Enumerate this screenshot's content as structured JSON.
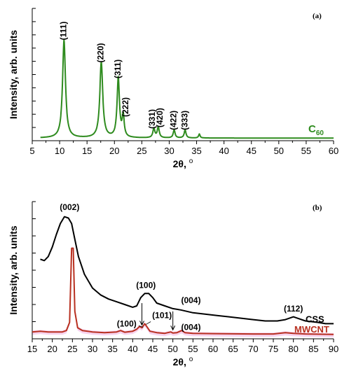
{
  "chart_data": [
    {
      "type": "line",
      "panel_label": "(a)",
      "xlabel": "2θ, ",
      "xlabel_unit": "o",
      "ylabel": "Intensity, arb. units",
      "xlim": [
        5,
        60
      ],
      "ylim": [
        0,
        100
      ],
      "x_ticks": [
        "5",
        "10",
        "15",
        "20",
        "25",
        "30",
        "35",
        "40",
        "45",
        "50",
        "55",
        "60"
      ],
      "y_tick_count": 11,
      "series": [
        {
          "name": "C",
          "name_sub": "60",
          "color": "#2e8b1e",
          "peaks": [
            {
              "x": 10.8,
              "y": 74,
              "w": 0.32
            },
            {
              "x": 17.6,
              "y": 57,
              "w": 0.32
            },
            {
              "x": 20.7,
              "y": 45,
              "w": 0.26
            },
            {
              "x": 21.6,
              "y": 16,
              "w": 0.22
            },
            {
              "x": 27.2,
              "y": 7,
              "w": 0.22
            },
            {
              "x": 28.0,
              "y": 8,
              "w": 0.22
            },
            {
              "x": 30.9,
              "y": 6,
              "w": 0.2
            },
            {
              "x": 32.9,
              "y": 6,
              "w": 0.2
            },
            {
              "x": 35.5,
              "y": 3,
              "w": 0.16
            }
          ],
          "baseline": 2,
          "x_start": 6.5
        }
      ],
      "annotations": [
        {
          "text": "(111)",
          "x": 10.8,
          "y": 76,
          "rotate": -90
        },
        {
          "text": "(220)",
          "x": 17.6,
          "y": 59,
          "rotate": -90
        },
        {
          "text": "(311)",
          "x": 20.7,
          "y": 47,
          "rotate": -90
        },
        {
          "text": "(222)",
          "x": 22.1,
          "y": 18,
          "rotate": -90
        },
        {
          "text": "(331)",
          "x": 27.0,
          "y": 9,
          "rotate": -90
        },
        {
          "text": "(420)",
          "x": 28.4,
          "y": 10,
          "rotate": -90
        },
        {
          "text": "(422)",
          "x": 30.9,
          "y": 8,
          "rotate": -90
        },
        {
          "text": "(333)",
          "x": 32.9,
          "y": 8,
          "rotate": -90
        }
      ]
    },
    {
      "type": "line",
      "panel_label": "(b)",
      "xlabel": "2θ, ",
      "xlabel_unit": "o",
      "ylabel": "Intensity, arb. units",
      "xlim": [
        15,
        90
      ],
      "ylim": [
        0,
        100
      ],
      "x_ticks": [
        "15",
        "20",
        "25",
        "30",
        "35",
        "40",
        "45",
        "50",
        "55",
        "60",
        "65",
        "70",
        "75",
        "80",
        "85",
        "90"
      ],
      "y_tick_count": 9,
      "series": [
        {
          "name": "CSS",
          "color": "#000000",
          "points": [
            [
              17,
              58
            ],
            [
              18,
              57
            ],
            [
              19,
              60
            ],
            [
              20,
              67
            ],
            [
              21,
              76
            ],
            [
              22,
              84
            ],
            [
              23,
              89
            ],
            [
              24,
              88
            ],
            [
              24.8,
              84
            ],
            [
              25.5,
              74
            ],
            [
              26.5,
              60
            ],
            [
              28,
              47
            ],
            [
              30,
              37
            ],
            [
              32,
              32
            ],
            [
              34,
              29
            ],
            [
              36,
              27
            ],
            [
              38,
              25
            ],
            [
              40,
              23
            ],
            [
              41,
              24
            ],
            [
              42,
              30
            ],
            [
              43,
              33
            ],
            [
              44,
              33
            ],
            [
              45,
              30
            ],
            [
              46,
              26
            ],
            [
              48,
              24
            ],
            [
              50,
              22
            ],
            [
              52,
              21
            ],
            [
              55,
              19
            ],
            [
              58,
              18
            ],
            [
              61,
              17
            ],
            [
              64,
              16
            ],
            [
              67,
              15
            ],
            [
              70,
              14
            ],
            [
              73,
              13
            ],
            [
              76,
              13
            ],
            [
              78,
              14
            ],
            [
              80,
              16
            ],
            [
              81,
              15
            ],
            [
              83,
              13
            ],
            [
              86,
              12
            ],
            [
              88,
              11
            ],
            [
              90,
              11
            ]
          ]
        },
        {
          "name": "MWCNT",
          "color": "#b83020",
          "band_color": "#f3c0e8",
          "points": [
            [
              15,
              5
            ],
            [
              17,
              5.5
            ],
            [
              19,
              5
            ],
            [
              21,
              5
            ],
            [
              22.5,
              5
            ],
            [
              23.5,
              6
            ],
            [
              24.3,
              12
            ],
            [
              24.8,
              66
            ],
            [
              25.2,
              66
            ],
            [
              25.6,
              20
            ],
            [
              26.3,
              8
            ],
            [
              27.5,
              6
            ],
            [
              30,
              5
            ],
            [
              33,
              4.5
            ],
            [
              36,
              5
            ],
            [
              37,
              6
            ],
            [
              38,
              4.8
            ],
            [
              40,
              5.5
            ],
            [
              41,
              7
            ],
            [
              41.7,
              9
            ],
            [
              42.3,
              8
            ],
            [
              43,
              11
            ],
            [
              43.5,
              9
            ],
            [
              44.3,
              5.5
            ],
            [
              46,
              4.5
            ],
            [
              48,
              4
            ],
            [
              49.5,
              5
            ],
            [
              50,
              4.2
            ],
            [
              51,
              4.5
            ],
            [
              52.2,
              6
            ],
            [
              53,
              4.5
            ],
            [
              55,
              4
            ],
            [
              60,
              3.8
            ],
            [
              65,
              3.6
            ],
            [
              70,
              3.5
            ],
            [
              75,
              3.5
            ],
            [
              78,
              4.5
            ],
            [
              80,
              4
            ],
            [
              83,
              3.5
            ],
            [
              90,
              3.2
            ]
          ]
        }
      ],
      "annotations": [
        {
          "text": "(002)",
          "x": 24.3,
          "y": 94
        },
        {
          "text": "(100)",
          "x": 43.3,
          "y": 37
        },
        {
          "text": "(004)",
          "x": 54.5,
          "y": 26
        },
        {
          "text": "(112)",
          "x": 80,
          "y": 20
        },
        {
          "text": "(100)",
          "x": 38.5,
          "y": 9
        },
        {
          "text": "(101)",
          "x": 47.3,
          "y": 15
        },
        {
          "text": "(004)",
          "x": 54.5,
          "y": 6.5
        }
      ],
      "arrows": [
        {
          "x": 42.3,
          "from": 26,
          "to": 10
        },
        {
          "x": 50.0,
          "from": 20,
          "to": 6.5
        }
      ],
      "leaders": [
        {
          "x1": 41.5,
          "y1": 9.5,
          "x2": 42.6,
          "y2": 8.5
        },
        {
          "x1": 44.5,
          "y1": 12.5,
          "x2": 43.3,
          "y2": 10.5
        }
      ]
    }
  ]
}
